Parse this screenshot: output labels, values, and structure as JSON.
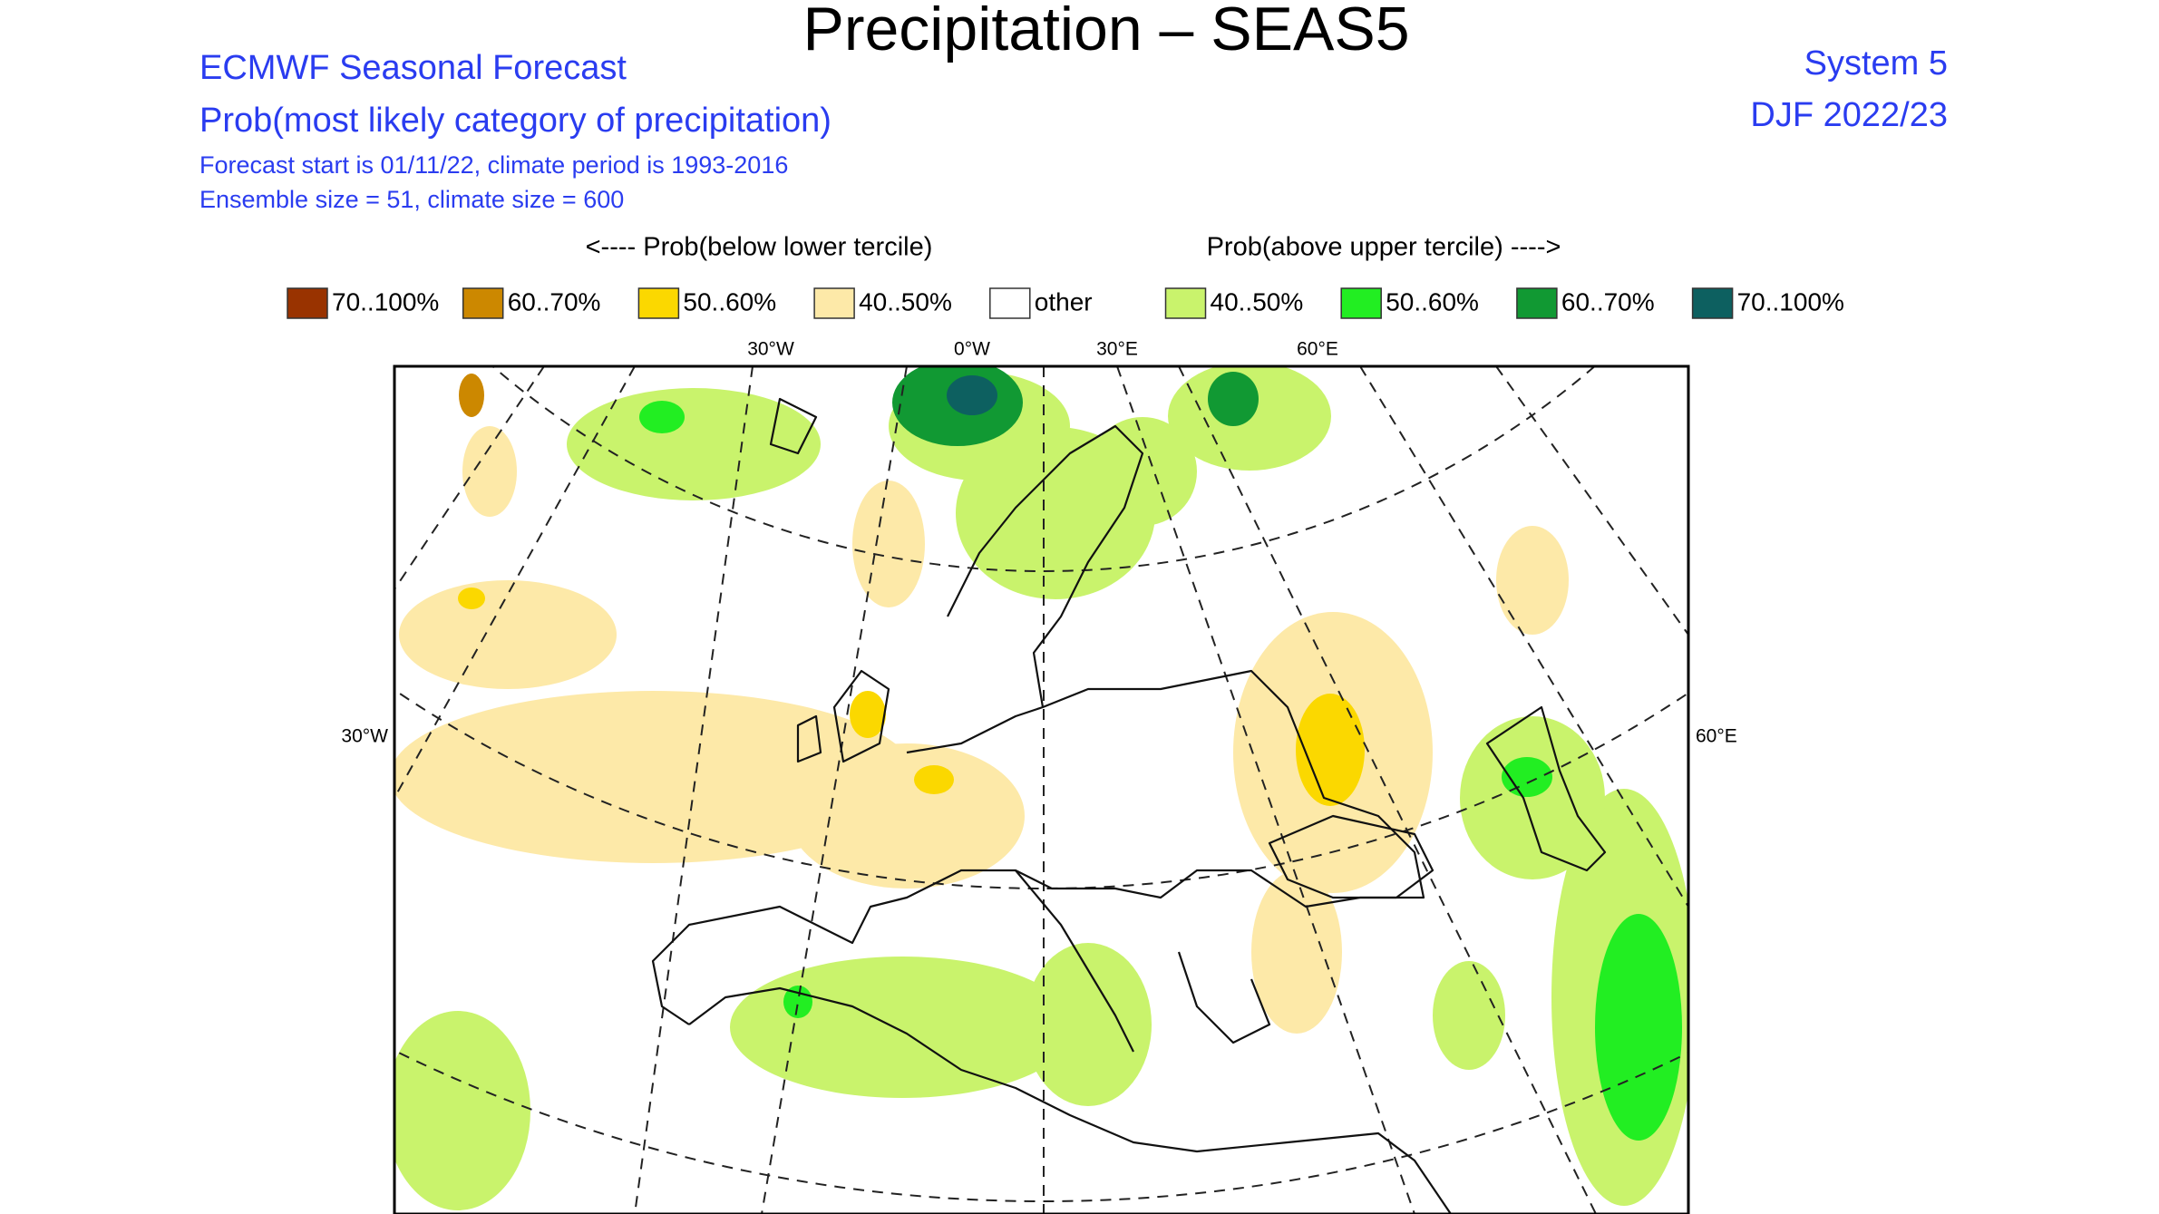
{
  "title": "Precipitation – SEAS5",
  "header": {
    "line1": "ECMWF Seasonal Forecast",
    "line2": "Prob(most likely category of precipitation)",
    "line3": "Forecast start is 01/11/22, climate period is 1993-2016",
    "line4": "Ensemble size = 51, climate size = 600",
    "system": "System 5",
    "season": "DJF 2022/23"
  },
  "legend": {
    "below_caption": "<---- Prob(below lower tercile)",
    "above_caption": "Prob(above upper tercile) ---->",
    "items": [
      {
        "label": "70..100%",
        "color": "#993300"
      },
      {
        "label": "60..70%",
        "color": "#cc8800"
      },
      {
        "label": "50..60%",
        "color": "#fbd800"
      },
      {
        "label": "40..50%",
        "color": "#fde9a8"
      },
      {
        "label": "other",
        "color": "#ffffff"
      },
      {
        "label": "40..50%",
        "color": "#c9f36c"
      },
      {
        "label": "50..60%",
        "color": "#22ee22"
      },
      {
        "label": "60..70%",
        "color": "#119933"
      },
      {
        "label": "70..100%",
        "color": "#0d6060"
      }
    ]
  },
  "map": {
    "top_labels": [
      "30°W",
      "0°W",
      "30°E",
      "60°E"
    ],
    "left_label": "30°W",
    "right_label": "60°E"
  }
}
